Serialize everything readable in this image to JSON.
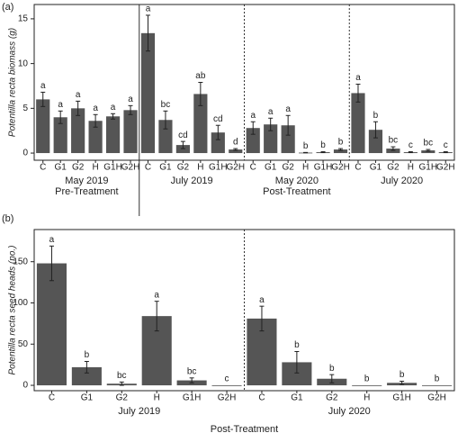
{
  "chart_data": [
    {
      "type": "bar",
      "panel_label": "(a)",
      "y_label": "Potentilla recta biomass (g)",
      "ylim": [
        -0.8,
        16.6
      ],
      "yticks": [
        0,
        5,
        10,
        15
      ],
      "color": "#555555",
      "dividers": [
        "solid",
        "dashed",
        "dashed"
      ],
      "groups": [
        {
          "name": "May 2019",
          "categories": [
            "C",
            "G1",
            "G2",
            "H",
            "G1H",
            "G2H"
          ],
          "values": [
            6.0,
            4.0,
            5.0,
            3.6,
            4.1,
            4.8
          ],
          "errors": [
            0.8,
            0.7,
            0.8,
            0.7,
            0.3,
            0.5
          ],
          "letters": [
            "a",
            "a",
            "a",
            "a",
            "a",
            "a"
          ]
        },
        {
          "name": "July 2019",
          "categories": [
            "C",
            "G1",
            "G2",
            "H",
            "G1H",
            "G2H"
          ],
          "values": [
            13.4,
            3.7,
            0.9,
            6.6,
            2.3,
            0.4
          ],
          "errors": [
            2.0,
            1.0,
            0.4,
            1.3,
            0.8,
            0.1
          ],
          "letters": [
            "a",
            "bc",
            "cd",
            "ab",
            "cd",
            "d"
          ]
        },
        {
          "name": "May 2020",
          "categories": [
            "C",
            "G1",
            "G2",
            "H",
            "G1H",
            "G2H"
          ],
          "values": [
            2.8,
            3.2,
            3.1,
            0.05,
            0.1,
            0.4
          ],
          "errors": [
            0.7,
            0.7,
            1.1,
            0.02,
            0.05,
            0.1
          ],
          "letters": [
            "a",
            "a",
            "a",
            "b",
            "b",
            "b"
          ]
        },
        {
          "name": "July 2020",
          "categories": [
            "C",
            "G1",
            "G2",
            "H",
            "G1H",
            "G2H"
          ],
          "values": [
            6.7,
            2.6,
            0.5,
            0.1,
            0.3,
            0.1
          ],
          "errors": [
            1.0,
            0.9,
            0.2,
            0.05,
            0.1,
            0.05
          ],
          "letters": [
            "a",
            "b",
            "bc",
            "c",
            "bc",
            "c"
          ]
        }
      ],
      "treatments": [
        {
          "name": "Pre-Treatment",
          "groups": [
            0
          ]
        },
        {
          "name": "Post-Treatment",
          "groups": [
            1,
            2,
            3
          ]
        }
      ]
    },
    {
      "type": "bar",
      "panel_label": "(b)",
      "y_label": "Potentilla recta seed heads (no.)",
      "ylim": [
        -6.5,
        189
      ],
      "yticks": [
        0,
        50,
        100,
        150
      ],
      "color": "#555555",
      "dividers": [
        "dashed"
      ],
      "groups": [
        {
          "name": "July 2019",
          "categories": [
            "C",
            "G1",
            "G2",
            "H",
            "G1H",
            "G2H"
          ],
          "values": [
            148,
            22,
            2,
            84,
            6,
            0
          ],
          "errors": [
            21,
            7,
            2,
            18,
            3,
            0
          ],
          "letters": [
            "a",
            "b",
            "bc",
            "a",
            "bc",
            "c"
          ]
        },
        {
          "name": "July 2020",
          "categories": [
            "C",
            "G1",
            "G2",
            "H",
            "G1H",
            "G2H"
          ],
          "values": [
            81,
            28,
            8,
            0,
            3,
            0
          ],
          "errors": [
            15,
            13,
            5,
            0,
            2,
            0
          ],
          "letters": [
            "a",
            "b",
            "b",
            "b",
            "b",
            "b"
          ]
        }
      ],
      "treatments": [
        {
          "name": "Post-Treatment",
          "groups": [
            0,
            1
          ]
        }
      ]
    }
  ]
}
